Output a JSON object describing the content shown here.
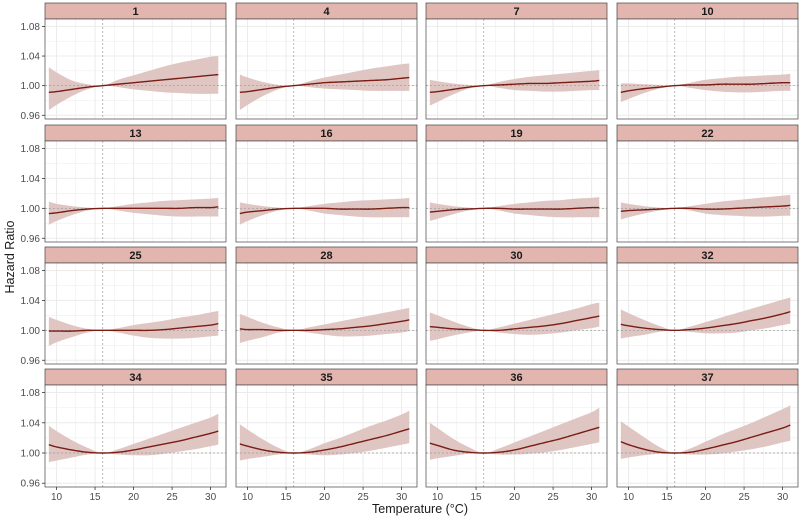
{
  "chart_data": {
    "type": "line",
    "layout": "facet-grid 4x4",
    "xlabel": "Temperature (°C)",
    "ylabel": "Hazard Ratio",
    "xlim": [
      8.5,
      32
    ],
    "ylim": [
      0.955,
      1.09
    ],
    "x_ticks": [
      10,
      15,
      20,
      25,
      30
    ],
    "y_ticks": [
      0.96,
      1.0,
      1.04,
      1.08
    ],
    "y_tick_labels": [
      "0.96",
      "1.00",
      "1.04",
      "1.08"
    ],
    "reference_line": {
      "y": 1.0,
      "x": 16,
      "style": "dashed"
    },
    "grid": true,
    "colors": {
      "line": "#7a1c14",
      "ribbon": "#dcc0bd",
      "strip": "#e2b6af",
      "strip_border": "#444444",
      "grid": "#ebebeb",
      "reference": "#9a9a9a"
    },
    "x": [
      9,
      10,
      12,
      14,
      16,
      18,
      20,
      22,
      24,
      26,
      28,
      30,
      31
    ],
    "panels": [
      {
        "label": "1",
        "curve": [
          0.991,
          0.992,
          0.995,
          0.998,
          1.0,
          1.002,
          1.004,
          1.006,
          1.008,
          1.01,
          1.012,
          1.014,
          1.015
        ],
        "lower": [
          0.967,
          0.974,
          0.986,
          0.995,
          1.0,
          0.998,
          0.995,
          0.993,
          0.991,
          0.99,
          0.989,
          0.989,
          0.989
        ],
        "upper": [
          1.025,
          1.018,
          1.007,
          1.002,
          1.0,
          1.008,
          1.014,
          1.02,
          1.026,
          1.031,
          1.035,
          1.039,
          1.04
        ]
      },
      {
        "label": "4",
        "curve": [
          0.991,
          0.992,
          0.995,
          0.998,
          1.0,
          1.002,
          1.004,
          1.005,
          1.006,
          1.007,
          1.008,
          1.01,
          1.011
        ],
        "lower": [
          0.967,
          0.974,
          0.986,
          0.995,
          1.0,
          0.998,
          0.996,
          0.995,
          0.994,
          0.993,
          0.993,
          0.993,
          0.993
        ],
        "upper": [
          1.015,
          1.011,
          1.005,
          1.001,
          1.0,
          1.006,
          1.011,
          1.015,
          1.019,
          1.023,
          1.026,
          1.029,
          1.03
        ]
      },
      {
        "label": "7",
        "curve": [
          0.991,
          0.992,
          0.995,
          0.998,
          1.0,
          1.001,
          1.002,
          1.003,
          1.003,
          1.004,
          1.005,
          1.006,
          1.007
        ],
        "lower": [
          0.973,
          0.978,
          0.988,
          0.996,
          1.0,
          0.997,
          0.994,
          0.993,
          0.992,
          0.992,
          0.993,
          0.994,
          0.994
        ],
        "upper": [
          1.008,
          1.006,
          1.003,
          1.001,
          1.0,
          1.005,
          1.009,
          1.012,
          1.014,
          1.016,
          1.018,
          1.02,
          1.021
        ]
      },
      {
        "label": "10",
        "curve": [
          0.991,
          0.993,
          0.996,
          0.998,
          1.0,
          1.001,
          1.001,
          1.002,
          1.002,
          1.002,
          1.003,
          1.004,
          1.004
        ],
        "lower": [
          0.978,
          0.982,
          0.99,
          0.996,
          1.0,
          0.997,
          0.994,
          0.992,
          0.991,
          0.991,
          0.992,
          0.993,
          0.993
        ],
        "upper": [
          1.003,
          1.003,
          1.002,
          1.001,
          1.0,
          1.004,
          1.008,
          1.01,
          1.012,
          1.013,
          1.014,
          1.015,
          1.016
        ]
      },
      {
        "label": "13",
        "curve": [
          0.993,
          0.994,
          0.997,
          0.999,
          1.0,
          1.0,
          1.0,
          1.0,
          1.0,
          1.0,
          1.001,
          1.001,
          1.002
        ],
        "lower": [
          0.978,
          0.983,
          0.991,
          0.997,
          1.0,
          0.997,
          0.994,
          0.992,
          0.99,
          0.989,
          0.989,
          0.989,
          0.989
        ],
        "upper": [
          1.009,
          1.006,
          1.003,
          1.001,
          1.0,
          1.003,
          1.006,
          1.008,
          1.01,
          1.011,
          1.012,
          1.013,
          1.014
        ]
      },
      {
        "label": "16",
        "curve": [
          0.993,
          0.995,
          0.997,
          0.999,
          1.0,
          1.0,
          1.0,
          0.999,
          0.999,
          0.999,
          1.0,
          1.001,
          1.001
        ],
        "lower": [
          0.978,
          0.983,
          0.991,
          0.997,
          1.0,
          0.997,
          0.993,
          0.991,
          0.989,
          0.988,
          0.988,
          0.988,
          0.988
        ],
        "upper": [
          1.008,
          1.006,
          1.003,
          1.001,
          1.0,
          1.003,
          1.006,
          1.008,
          1.01,
          1.011,
          1.012,
          1.013,
          1.014
        ]
      },
      {
        "label": "19",
        "curve": [
          0.995,
          0.996,
          0.998,
          0.999,
          1.0,
          1.0,
          0.999,
          0.999,
          0.999,
          0.999,
          1.0,
          1.001,
          1.001
        ],
        "lower": [
          0.983,
          0.986,
          0.992,
          0.997,
          1.0,
          0.997,
          0.993,
          0.991,
          0.989,
          0.988,
          0.988,
          0.988,
          0.988
        ],
        "upper": [
          1.008,
          1.006,
          1.003,
          1.001,
          1.0,
          1.003,
          1.006,
          1.008,
          1.01,
          1.011,
          1.013,
          1.014,
          1.015
        ]
      },
      {
        "label": "22",
        "curve": [
          0.996,
          0.997,
          0.998,
          0.999,
          1.0,
          1.0,
          0.999,
          0.999,
          1.0,
          1.001,
          1.002,
          1.003,
          1.004
        ],
        "lower": [
          0.985,
          0.988,
          0.993,
          0.997,
          1.0,
          0.997,
          0.993,
          0.991,
          0.99,
          0.989,
          0.989,
          0.99,
          0.99
        ],
        "upper": [
          1.008,
          1.006,
          1.003,
          1.001,
          1.0,
          1.003,
          1.006,
          1.009,
          1.011,
          1.013,
          1.015,
          1.017,
          1.018
        ]
      },
      {
        "label": "25",
        "curve": [
          0.999,
          0.999,
          0.999,
          1.0,
          1.0,
          1.0,
          1.0,
          1.0,
          1.001,
          1.003,
          1.005,
          1.007,
          1.009
        ],
        "lower": [
          0.979,
          0.984,
          0.991,
          0.997,
          1.0,
          0.997,
          0.993,
          0.99,
          0.989,
          0.989,
          0.99,
          0.992,
          0.993
        ],
        "upper": [
          1.018,
          1.014,
          1.007,
          1.002,
          1.0,
          1.003,
          1.007,
          1.01,
          1.013,
          1.017,
          1.02,
          1.024,
          1.026
        ]
      },
      {
        "label": "28",
        "curve": [
          1.002,
          1.001,
          1.001,
          1.0,
          1.0,
          1.0,
          1.001,
          1.002,
          1.004,
          1.006,
          1.009,
          1.012,
          1.014
        ],
        "lower": [
          0.983,
          0.986,
          0.991,
          0.997,
          1.0,
          0.997,
          0.994,
          0.992,
          0.992,
          0.993,
          0.995,
          0.997,
          0.999
        ],
        "upper": [
          1.022,
          1.018,
          1.01,
          1.004,
          1.0,
          1.004,
          1.008,
          1.012,
          1.016,
          1.02,
          1.024,
          1.028,
          1.03
        ]
      },
      {
        "label": "30",
        "curve": [
          1.005,
          1.004,
          1.002,
          1.001,
          1.0,
          1.0,
          1.002,
          1.004,
          1.006,
          1.009,
          1.013,
          1.017,
          1.019
        ],
        "lower": [
          0.986,
          0.988,
          0.993,
          0.997,
          1.0,
          0.997,
          0.995,
          0.994,
          0.995,
          0.997,
          1.0,
          1.003,
          1.005
        ],
        "upper": [
          1.024,
          1.02,
          1.012,
          1.005,
          1.0,
          1.004,
          1.009,
          1.014,
          1.019,
          1.024,
          1.029,
          1.035,
          1.037
        ]
      },
      {
        "label": "32",
        "curve": [
          1.008,
          1.006,
          1.003,
          1.001,
          1.0,
          1.001,
          1.003,
          1.006,
          1.009,
          1.013,
          1.017,
          1.022,
          1.025
        ],
        "lower": [
          0.989,
          0.991,
          0.994,
          0.998,
          1.0,
          0.998,
          0.996,
          0.996,
          0.997,
          1.0,
          1.003,
          1.007,
          1.009
        ],
        "upper": [
          1.028,
          1.023,
          1.014,
          1.006,
          1.0,
          1.005,
          1.011,
          1.017,
          1.023,
          1.029,
          1.035,
          1.041,
          1.044
        ]
      },
      {
        "label": "34",
        "curve": [
          1.011,
          1.008,
          1.004,
          1.001,
          1.0,
          1.001,
          1.004,
          1.008,
          1.012,
          1.016,
          1.021,
          1.026,
          1.029
        ],
        "lower": [
          0.988,
          0.99,
          0.994,
          0.998,
          1.0,
          0.998,
          0.997,
          0.997,
          0.999,
          1.002,
          1.005,
          1.009,
          1.011
        ],
        "upper": [
          1.036,
          1.029,
          1.017,
          1.007,
          1.0,
          1.005,
          1.012,
          1.019,
          1.026,
          1.033,
          1.04,
          1.047,
          1.052
        ]
      },
      {
        "label": "35",
        "curve": [
          1.012,
          1.009,
          1.004,
          1.001,
          1.0,
          1.001,
          1.004,
          1.008,
          1.013,
          1.018,
          1.023,
          1.029,
          1.032
        ],
        "lower": [
          0.99,
          0.992,
          0.995,
          0.998,
          1.0,
          0.998,
          0.997,
          0.998,
          1.0,
          1.003,
          1.007,
          1.011,
          1.013
        ],
        "upper": [
          1.038,
          1.031,
          1.018,
          1.007,
          1.0,
          1.005,
          1.013,
          1.02,
          1.028,
          1.036,
          1.043,
          1.051,
          1.056
        ]
      },
      {
        "label": "36",
        "curve": [
          1.013,
          1.01,
          1.004,
          1.001,
          1.0,
          1.001,
          1.004,
          1.009,
          1.014,
          1.019,
          1.025,
          1.031,
          1.034
        ],
        "lower": [
          0.991,
          0.993,
          0.996,
          0.999,
          1.0,
          0.998,
          0.998,
          0.999,
          1.001,
          1.004,
          1.008,
          1.012,
          1.014
        ],
        "upper": [
          1.04,
          1.033,
          1.019,
          1.008,
          1.0,
          1.006,
          1.014,
          1.022,
          1.03,
          1.038,
          1.046,
          1.054,
          1.06
        ]
      },
      {
        "label": "37",
        "curve": [
          1.015,
          1.011,
          1.005,
          1.001,
          1.0,
          1.001,
          1.005,
          1.01,
          1.015,
          1.021,
          1.027,
          1.033,
          1.037
        ],
        "lower": [
          0.992,
          0.994,
          0.997,
          0.999,
          1.0,
          0.998,
          0.998,
          0.999,
          1.002,
          1.005,
          1.009,
          1.014,
          1.016
        ],
        "upper": [
          1.042,
          1.035,
          1.021,
          1.008,
          1.0,
          1.006,
          1.015,
          1.024,
          1.032,
          1.04,
          1.049,
          1.058,
          1.063
        ]
      }
    ]
  }
}
